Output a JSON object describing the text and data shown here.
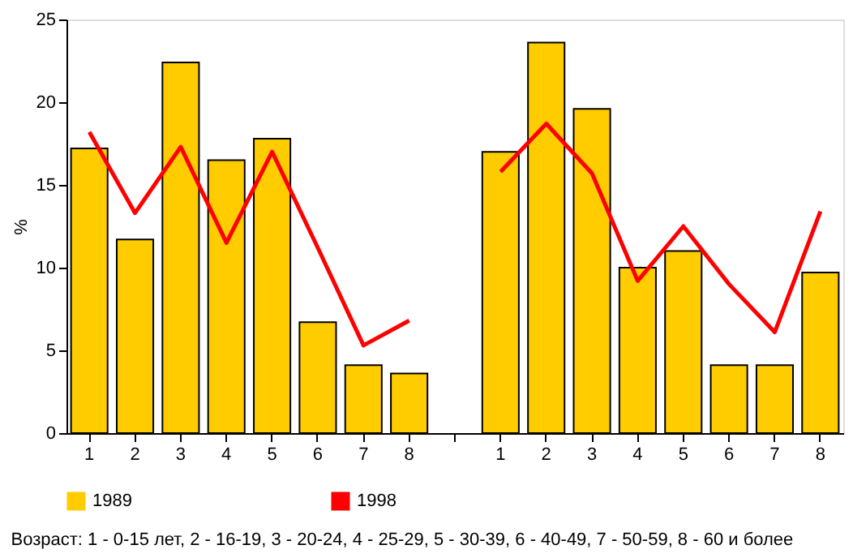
{
  "chart_data": {
    "type": "bar",
    "categories": [
      "1",
      "2",
      "3",
      "4",
      "5",
      "6",
      "7",
      "8",
      null,
      "1",
      "2",
      "3",
      "4",
      "5",
      "6",
      "7",
      "8"
    ],
    "ylabel": "%",
    "ylim": [
      0,
      25
    ],
    "yticks": [
      0,
      5,
      10,
      15,
      20,
      25
    ],
    "grid": false,
    "legend": "bottom",
    "annotations": [
      "Возраст: 1 - 0-15 лет, 2 - 16-19, 3 - 20-24, 4 - 25-29, 5 - 30-39, 6 - 40-49, 7 - 50-59, 8 - 60 и более"
    ],
    "series": [
      {
        "name": "1989",
        "color": "#ffcc00",
        "values": [
          17.2,
          11.7,
          22.4,
          16.5,
          17.8,
          6.7,
          4.1,
          3.6,
          null,
          17.0,
          23.6,
          19.6,
          10.0,
          11.0,
          4.1,
          4.1,
          9.7
        ]
      },
      {
        "name": "1998",
        "type": "line",
        "color": "#ff0000",
        "values": [
          18.2,
          13.3,
          17.3,
          11.5,
          17.0,
          11.2,
          5.3,
          6.8,
          null,
          15.8,
          18.7,
          15.7,
          9.2,
          12.5,
          9.0,
          6.1,
          13.4
        ]
      }
    ]
  }
}
